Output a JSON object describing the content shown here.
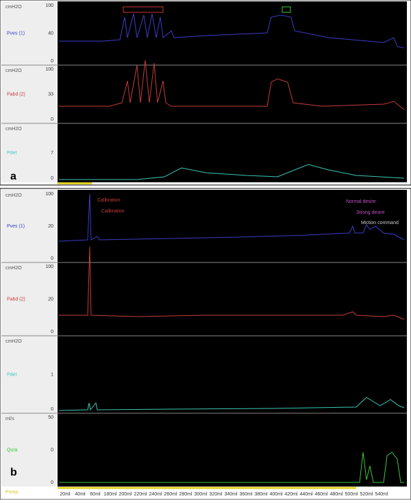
{
  "panel_a": {
    "label": "a",
    "channels": [
      {
        "unit": "cmH2O",
        "top": 100,
        "mid": 40,
        "bottom": 0,
        "name": "Pves (1)"
      },
      {
        "unit": "cmH2O",
        "top": 100,
        "mid": 33,
        "bottom": 0,
        "name": "Pabd (2)"
      },
      {
        "unit": "cmH2O",
        "mid": 7,
        "bottom": 0,
        "name": "Pdet"
      }
    ]
  },
  "panel_b": {
    "label": "b",
    "channels": [
      {
        "unit": "cmH2O",
        "top": 100,
        "mid": 20,
        "bottom": 0,
        "name": "Pves (1)"
      },
      {
        "unit": "cmH2O",
        "top": 100,
        "mid": 20,
        "bottom": 0,
        "name": "Pabd (2)"
      },
      {
        "unit": "cmH2O",
        "mid": 1,
        "bottom": 0,
        "name": "Pdet"
      },
      {
        "unit": "ml/s",
        "top": 50,
        "mid": 0,
        "bottom": 0,
        "name": "Qura"
      }
    ],
    "events": [
      "Calibration",
      "Calibration",
      "Normal desire",
      "Strong desire",
      "Miction command"
    ],
    "pump": "Pump",
    "volume_ticks": [
      "20ml",
      "40ml",
      "60ml",
      "180ml",
      "200ml",
      "220ml",
      "240ml",
      "260ml",
      "280ml",
      "300ml",
      "320ml",
      "340ml",
      "360ml",
      "380ml",
      "400ml",
      "420ml",
      "440ml",
      "460ml",
      "480ml",
      "500ml",
      "520ml",
      "540ml"
    ]
  }
}
